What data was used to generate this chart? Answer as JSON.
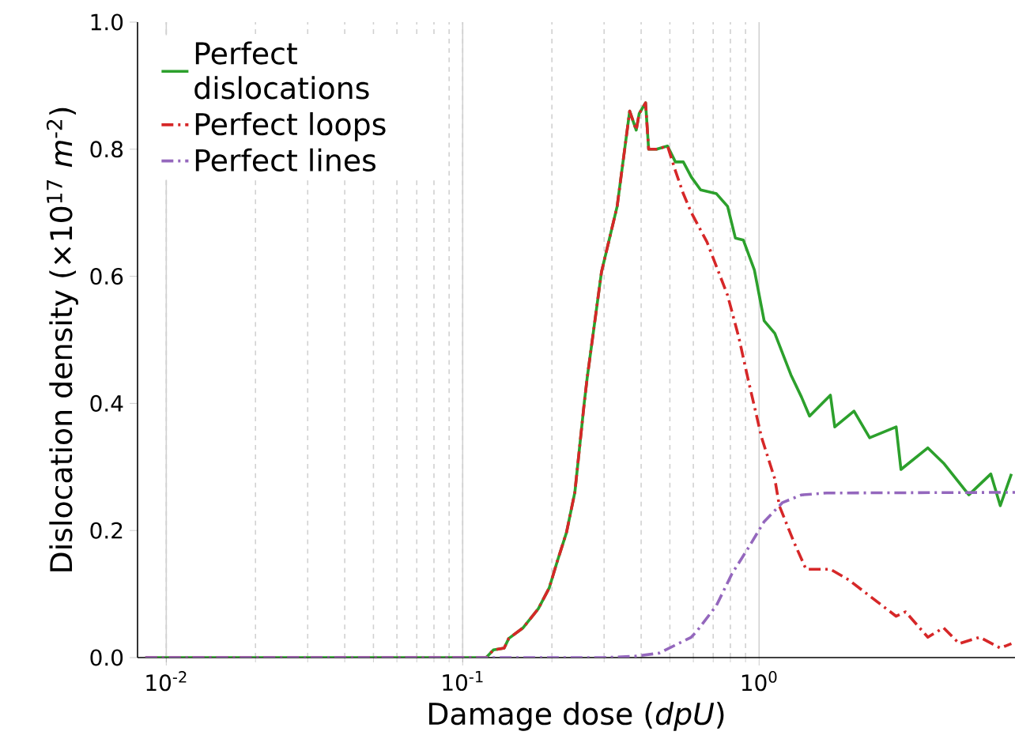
{
  "chart_data": {
    "type": "line",
    "xlabel": "Damage dose (*dpU*)",
    "ylabel": "Dislocation density (×10$^{17}$ *m*$^{-2}$)",
    "log": "x",
    "grid": "x",
    "legend": "top left",
    "marker": "none",
    "xlim": [
      0.008,
      7.3
    ],
    "ylim": [
      0,
      1
    ],
    "xticks": [
      {
        "value": 0.01,
        "label": "10$^{-2}$"
      },
      {
        "value": 0.1,
        "label": "10$^{-1}$"
      },
      {
        "value": 1,
        "label": "10$^{0}$"
      }
    ],
    "yticks": [
      {
        "value": 0,
        "label": "0.0"
      },
      {
        "value": 0.2,
        "label": "0.2"
      },
      {
        "value": 0.4,
        "label": "0.4"
      },
      {
        "value": 0.6,
        "label": "0.6"
      },
      {
        "value": 0.8,
        "label": "0.8"
      },
      {
        "value": 1,
        "label": "1.0"
      }
    ],
    "series": [
      {
        "name": "Perfect dislocations",
        "color": "#2ca02c",
        "line_style": "solid",
        "x": [
          0.0085,
          0.12,
          0.127,
          0.138,
          0.143,
          0.16,
          0.18,
          0.196,
          0.208,
          0.224,
          0.239,
          0.257,
          0.263,
          0.294,
          0.332,
          0.366,
          0.385,
          0.394,
          0.414,
          0.424,
          0.451,
          0.491,
          0.522,
          0.555,
          0.591,
          0.635,
          0.718,
          0.783,
          0.832,
          0.885,
          0.964,
          1.04,
          1.13,
          1.28,
          1.39,
          1.48,
          1.74,
          1.8,
          2.09,
          2.36,
          2.9,
          3.01,
          3.71,
          4.19,
          5.1,
          6.05,
          6.51,
          7.1
        ],
        "values": [
          0,
          0,
          0.012,
          0.015,
          0.03,
          0.047,
          0.077,
          0.11,
          0.15,
          0.197,
          0.26,
          0.4,
          0.44,
          0.607,
          0.71,
          0.86,
          0.83,
          0.856,
          0.873,
          0.8,
          0.8,
          0.805,
          0.78,
          0.78,
          0.756,
          0.736,
          0.73,
          0.71,
          0.66,
          0.657,
          0.61,
          0.53,
          0.51,
          0.445,
          0.41,
          0.38,
          0.413,
          0.363,
          0.388,
          0.346,
          0.363,
          0.296,
          0.33,
          0.306,
          0.256,
          0.289,
          0.239,
          0.289
        ]
      },
      {
        "name": "Perfect loops",
        "color": "#d62728",
        "line_style": "dashdot",
        "x": [
          0.0085,
          0.12,
          0.127,
          0.138,
          0.143,
          0.16,
          0.18,
          0.196,
          0.208,
          0.224,
          0.239,
          0.257,
          0.263,
          0.294,
          0.332,
          0.366,
          0.385,
          0.394,
          0.414,
          0.424,
          0.451,
          0.491,
          0.522,
          0.555,
          0.591,
          0.667,
          0.783,
          0.853,
          0.918,
          1.02,
          1.13,
          1.17,
          1.31,
          1.44,
          1.74,
          2.01,
          2.36,
          2.9,
          3.12,
          3.71,
          4.19,
          4.73,
          5.55,
          6.51,
          7.1
        ],
        "values": [
          0,
          0,
          0.012,
          0.015,
          0.03,
          0.047,
          0.077,
          0.11,
          0.15,
          0.197,
          0.26,
          0.4,
          0.44,
          0.607,
          0.71,
          0.86,
          0.83,
          0.856,
          0.873,
          0.8,
          0.8,
          0.805,
          0.766,
          0.73,
          0.7,
          0.654,
          0.57,
          0.505,
          0.438,
          0.346,
          0.281,
          0.239,
          0.182,
          0.139,
          0.139,
          0.122,
          0.097,
          0.065,
          0.072,
          0.032,
          0.047,
          0.022,
          0.032,
          0.015,
          0.022
        ]
      },
      {
        "name": "Perfect lines",
        "color": "#9467bd",
        "line_style": "dashdot",
        "x": [
          0.0085,
          0.3,
          0.38,
          0.46,
          0.59,
          0.613,
          0.718,
          0.81,
          0.918,
          1.04,
          1.2,
          1.39,
          1.69,
          7.3
        ],
        "values": [
          0,
          0,
          0.002,
          0.007,
          0.032,
          0.04,
          0.082,
          0.132,
          0.172,
          0.214,
          0.244,
          0.256,
          0.259,
          0.26
        ]
      }
    ]
  }
}
